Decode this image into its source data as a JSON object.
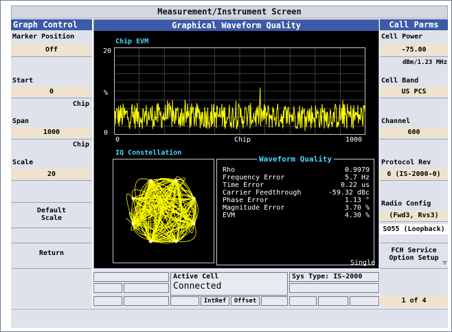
{
  "window": {
    "title": "Measurement/Instrument Screen"
  },
  "left_panel": {
    "header": "Graph Control",
    "marker_label": "Marker Position",
    "marker_value": "Off",
    "start_label": "Start",
    "start_value": "0",
    "start_unit": "Chip",
    "span_label": "Span",
    "span_value": "1000",
    "span_unit": "Chip",
    "scale_label": "Scale",
    "scale_value": "20",
    "default_scale_line1": "Default",
    "default_scale_line2": "Scale",
    "return_label": "Return"
  },
  "center": {
    "header": "Graphical Waveform Quality",
    "chip_evm_title": "Chip EVM",
    "y_max": "20",
    "y_min": "0",
    "y_unit": "%",
    "x_min": "0",
    "x_mid": "Chip",
    "x_max": "1000",
    "iq_title": "IQ Constellation",
    "wq_title": "Waveform Quality",
    "metrics": [
      {
        "name": "Rho",
        "value": "0.9979"
      },
      {
        "name": "Frequency Error",
        "value": "5.7 Hz"
      },
      {
        "name": "Time Error",
        "value": "0.22 us"
      },
      {
        "name": "Carrier Feedthrough",
        "value": "-59.32 dBc"
      },
      {
        "name": "Phase Error",
        "value": "1.13 °"
      },
      {
        "name": "Magnitude Error",
        "value": "3.70 %"
      },
      {
        "name": "EVM",
        "value": "4.30 %"
      }
    ],
    "mode": "Single"
  },
  "right_panel": {
    "header": "Call Parms",
    "cell_power_label": "Cell Power",
    "cell_power_value": "-75.00",
    "cell_power_unit": "dBm/1.23 MHz",
    "cell_band_label": "Cell Band",
    "cell_band_value": "US PCS",
    "channel_label": "Channel",
    "channel_value": "600",
    "protocol_label": "Protocol Rev",
    "protocol_value": "6 (IS-2000-0)",
    "radio_config_label": "Radio Config",
    "radio_config_value": "(Fwd3, Rvs3)",
    "so_value": "SO55 (Loopback)",
    "fch_line1": "FCH Service",
    "fch_line2": "Option Setup",
    "page_indicator": "1 of 4"
  },
  "bottom": {
    "active_cell_label": "Active Cell",
    "active_cell_value": "Connected",
    "sys_type": "Sys Type: IS-2000",
    "intref": "IntRef",
    "offset": "Offset"
  },
  "colors": {
    "header_blue": "#3b5aa7",
    "trace_yellow": "#ffff00",
    "label_cyan": "#4ad9ff",
    "value_bg": "#efe3cd"
  }
}
